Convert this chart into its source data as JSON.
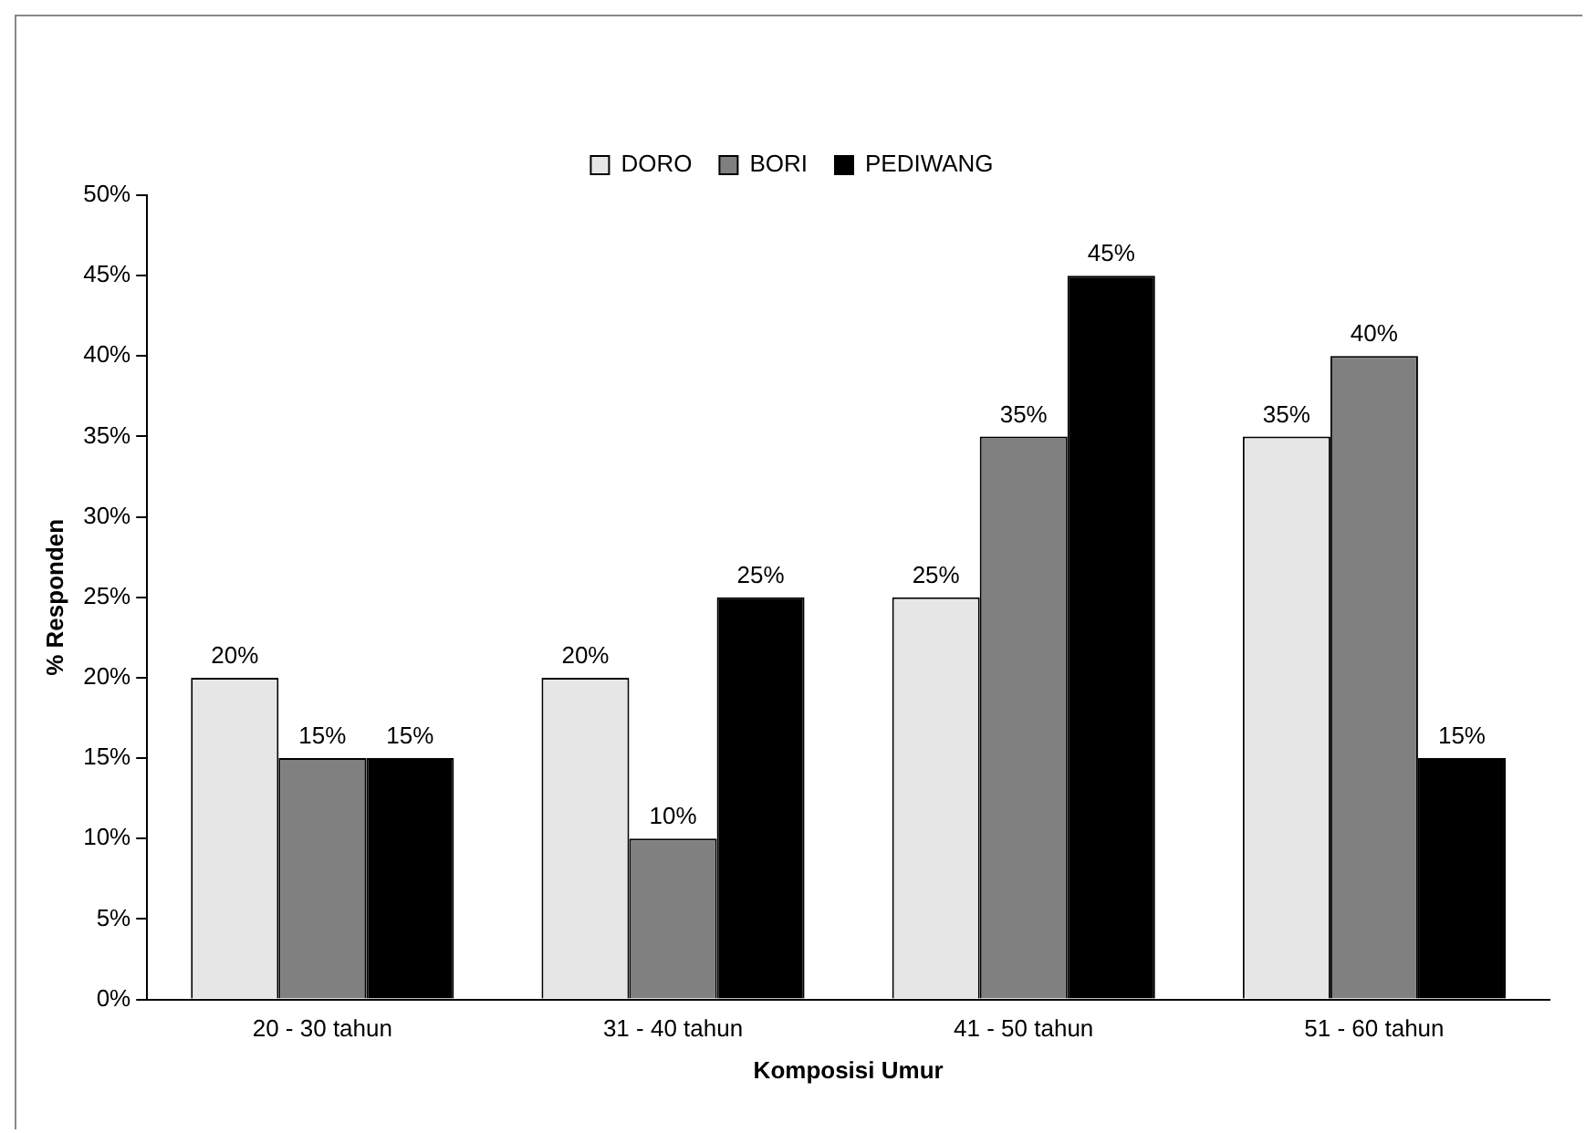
{
  "chart_data": {
    "type": "bar",
    "xlabel": "Komposisi Umur",
    "ylabel": "% Responden",
    "categories": [
      "20 - 30 tahun",
      "31 - 40 tahun",
      "41 - 50 tahun",
      "51 - 60 tahun"
    ],
    "series": [
      {
        "name": "DORO",
        "color": "#e6e6e6",
        "values": [
          20,
          20,
          25,
          35
        ],
        "value_labels": [
          "20%",
          "20%",
          "25%",
          "35%"
        ]
      },
      {
        "name": "BORI",
        "color": "#808080",
        "values": [
          15,
          10,
          35,
          40
        ],
        "value_labels": [
          "15%",
          "10%",
          "35%",
          "40%"
        ]
      },
      {
        "name": "PEDIWANG",
        "color": "#000000",
        "values": [
          15,
          25,
          45,
          15
        ],
        "value_labels": [
          "15%",
          "25%",
          "45%",
          "15%"
        ]
      }
    ],
    "ylim": [
      0,
      50
    ],
    "yticks": [
      {
        "value": 0,
        "label": "0%"
      },
      {
        "value": 5,
        "label": "5%"
      },
      {
        "value": 10,
        "label": "10%"
      },
      {
        "value": 15,
        "label": "15%"
      },
      {
        "value": 20,
        "label": "20%"
      },
      {
        "value": 25,
        "label": "25%"
      },
      {
        "value": 30,
        "label": "30%"
      },
      {
        "value": 35,
        "label": "35%"
      },
      {
        "value": 40,
        "label": "40%"
      },
      {
        "value": 45,
        "label": "45%"
      },
      {
        "value": 50,
        "label": "50%"
      }
    ],
    "grid": false,
    "legend": "top"
  }
}
